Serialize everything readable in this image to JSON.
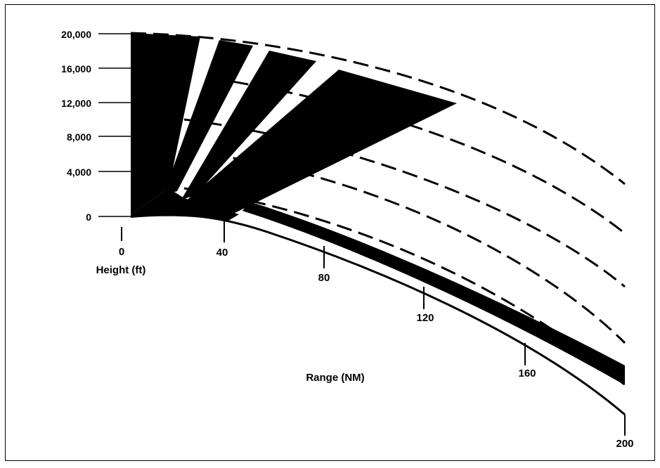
{
  "diagram": {
    "height_axis": {
      "unit_label": "Height (ft)",
      "ticks": [
        "20,000",
        "16,000",
        "12,000",
        "8,000",
        "4,000",
        "0"
      ]
    },
    "range_axis": {
      "unit_label": "Range (NM)",
      "ticks": [
        "0",
        "40",
        "80",
        "120",
        "160",
        "200"
      ]
    },
    "colors": {
      "ink": "#000000",
      "paper": "#ffffff"
    }
  }
}
